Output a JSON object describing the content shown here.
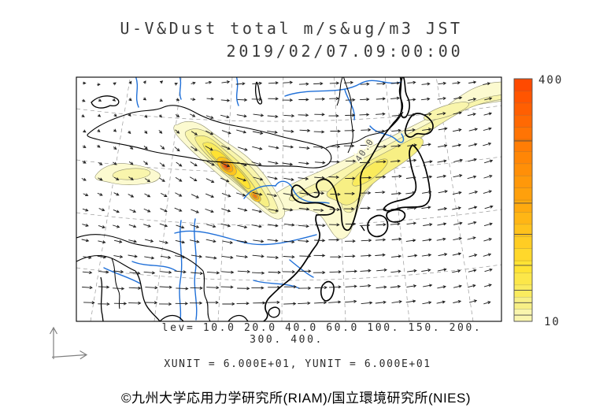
{
  "figure": {
    "title": "U-V&Dust total m/s&ug/m3 JST",
    "datetime": "2019/02/07.09:00:00"
  },
  "map": {
    "contour_label": "40.0",
    "levels": [
      10,
      20,
      40,
      60,
      100,
      150,
      200,
      300,
      400
    ],
    "level_colors": [
      "#FCFAD0",
      "#F9F5AC",
      "#F7EF84",
      "#FAEB5C",
      "#FFE232",
      "#FFC61E",
      "#FFA70D",
      "#FF7A04",
      "#FF4500"
    ],
    "coast_color": "#000000",
    "river_color": "#2070d8",
    "graticule_color": "#9a9a9a",
    "arrow_color": "#1c1c1c",
    "contour_line_color": "#90906e",
    "frame_color": "#000000",
    "axis_indicator_color": "#808080"
  },
  "colorbar": {
    "max_label": "400",
    "min_label": "10",
    "value_min": 10,
    "value_max": 400
  },
  "legend": {
    "levels_line1": "lev= 10.0 20.0 40.0 60.0 100. 150. 200.",
    "levels_line2": "300. 400.",
    "units_line": "XUNIT = 6.000E+01, YUNIT = 6.000E+01"
  },
  "footer": {
    "copyright": "©九州大学応用力学研究所(RIAM)/国立環境研究所(NIES)"
  }
}
